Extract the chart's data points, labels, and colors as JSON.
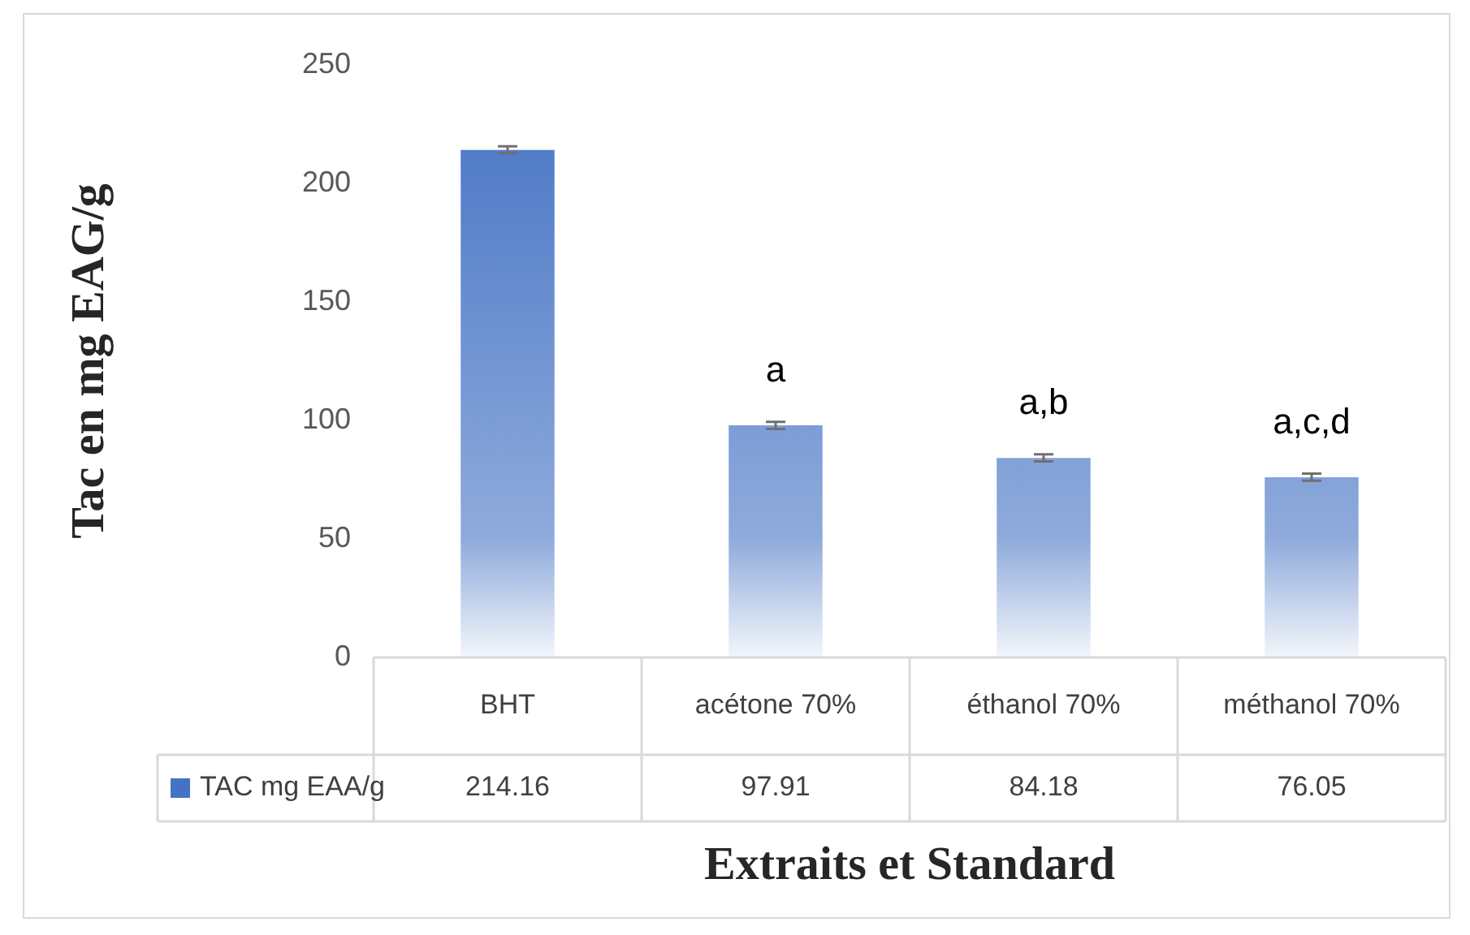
{
  "chart_data": {
    "type": "bar",
    "xlabel": "Extraits et Standard",
    "ylabel": "Tac en mg EAG/g",
    "categories": [
      "BHT",
      "acétone 70%",
      "éthanol 70%",
      "méthanol 70%"
    ],
    "series": [
      {
        "name": "TAC mg EAA/g",
        "color": "#4472c4",
        "values": [
          214.16,
          97.91,
          84.18,
          76.05
        ],
        "errors": [
          1.5,
          1.5,
          1.5,
          1.5
        ]
      }
    ],
    "ylim": [
      0,
      250
    ],
    "yticks": [
      0,
      50,
      100,
      150,
      200,
      250
    ],
    "grid": false,
    "data_labels": true,
    "annotations": [
      {
        "text": "a",
        "x": "acétone 70%",
        "y": 97.91
      },
      {
        "text": "a,b",
        "x": "éthanol 70%",
        "y": 84.18
      },
      {
        "text": "a,c,d",
        "x": "méthanol 70%",
        "y": 76.05
      }
    ]
  }
}
